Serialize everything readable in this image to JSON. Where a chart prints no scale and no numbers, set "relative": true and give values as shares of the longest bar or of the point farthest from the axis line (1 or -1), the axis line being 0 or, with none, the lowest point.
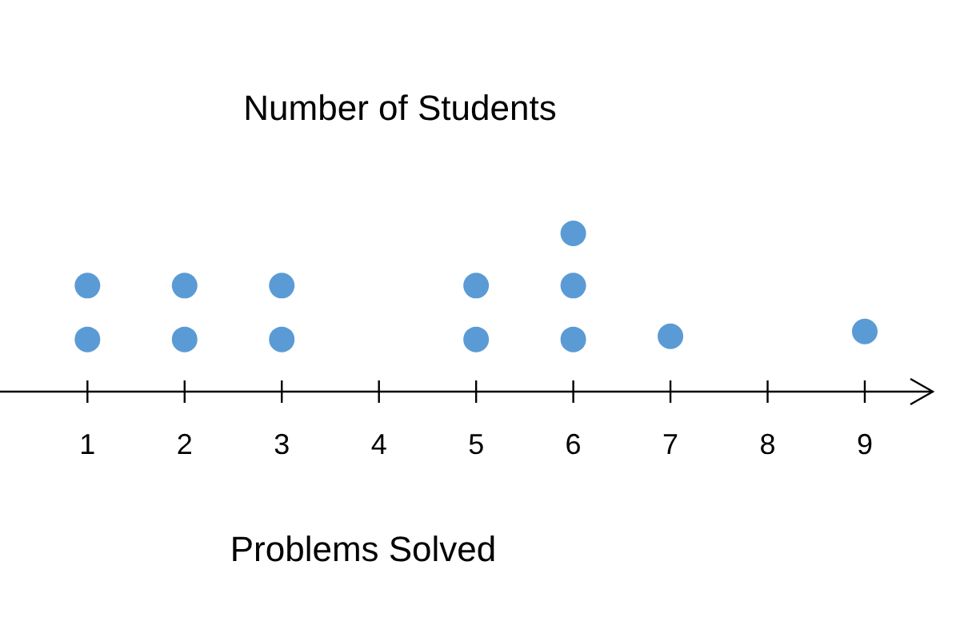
{
  "chart_data": {
    "type": "scatter",
    "title": "Number of Students",
    "xlabel": "Problems Solved",
    "relative": true,
    "xlim": [
      0.1,
      9.7
    ],
    "xticks": [
      1,
      2,
      3,
      4,
      5,
      6,
      7,
      8,
      9
    ],
    "marker": "circle",
    "grid": false,
    "series": [
      {
        "color": "#5b9bd5",
        "x": [
          1,
          1,
          2,
          2,
          3,
          3,
          5,
          5,
          6,
          6,
          6,
          7,
          9
        ],
        "values": [
          0.33,
          0.67,
          0.33,
          0.67,
          0.33,
          0.67,
          0.33,
          0.67,
          0.33,
          0.67,
          1,
          0.35,
          0.38
        ]
      }
    ]
  }
}
